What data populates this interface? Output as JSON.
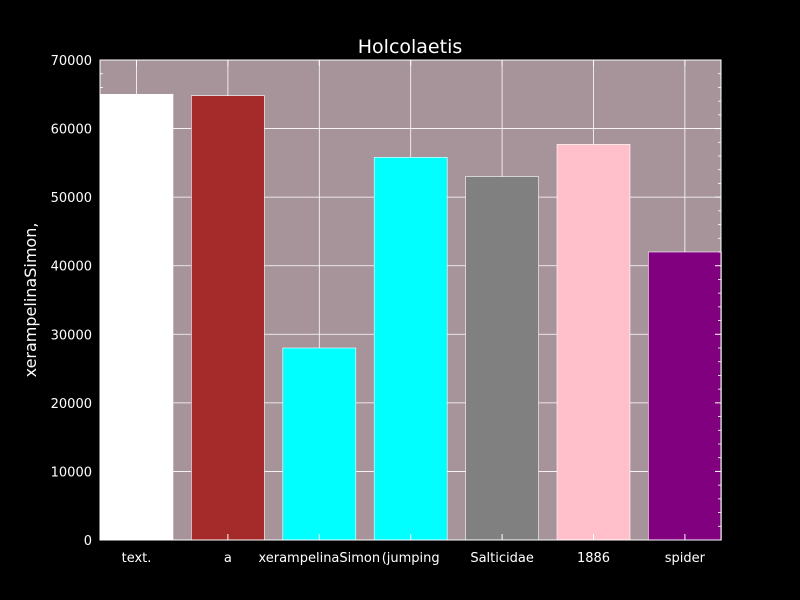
{
  "chart_data": {
    "type": "bar",
    "title": "Holcolaetis",
    "xlabel": "",
    "ylabel": "xerampelinaSimon,",
    "categories": [
      "text.",
      "a",
      "xerampelinaSimon",
      "(jumping",
      "Salticidae",
      "1886",
      "spider"
    ],
    "values": [
      65000,
      64800,
      28000,
      55800,
      53000,
      57700,
      42000
    ],
    "colors": [
      "#ffffff",
      "#a52a2a",
      "#00ffff",
      "#00ffff",
      "#808080",
      "#ffc0cb",
      "#800080"
    ],
    "ylim": [
      0,
      70000
    ],
    "yticks": [
      0,
      10000,
      20000,
      30000,
      40000,
      50000,
      60000,
      70000
    ],
    "grid": true,
    "background": "#000000",
    "plot_background": "#a7949b"
  }
}
